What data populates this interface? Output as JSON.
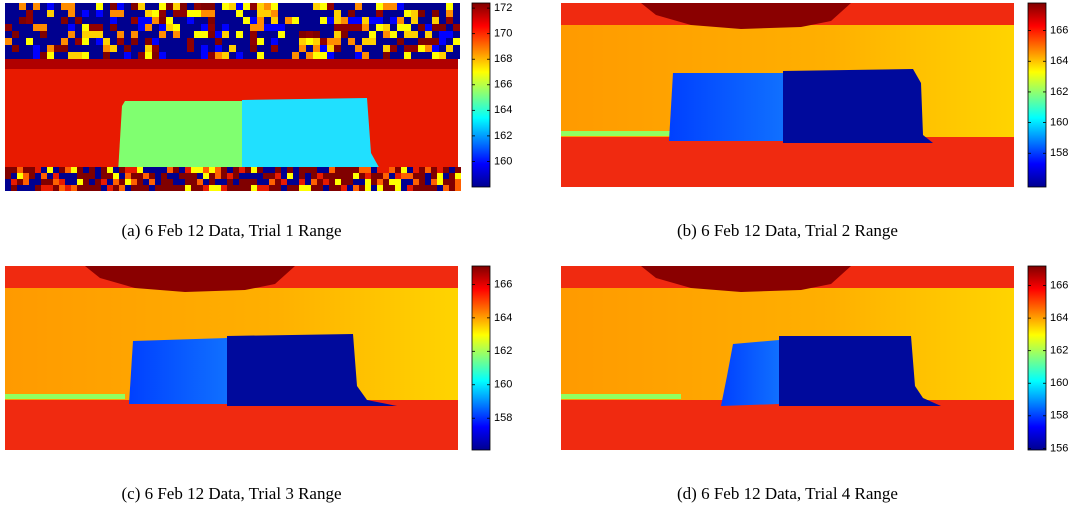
{
  "panels": [
    {
      "caption": "(a) 6 Feb 12 Data, Trial 1 Range",
      "colorbar": {
        "lim": [
          158,
          172.4
        ],
        "ticks": [
          160,
          162,
          164,
          166,
          168,
          170,
          172
        ]
      }
    },
    {
      "caption": "(b) 6 Feb 12 Data, Trial 2 Range",
      "colorbar": {
        "lim": [
          155.8,
          167.8
        ],
        "ticks": [
          158,
          160,
          162,
          164,
          166
        ]
      }
    },
    {
      "caption": "(c) 6 Feb 12 Data, Trial 3 Range",
      "colorbar": {
        "lim": [
          156.1,
          167.1
        ],
        "ticks": [
          158,
          160,
          162,
          164,
          166
        ]
      }
    },
    {
      "caption": "(d) 6 Feb 12 Data, Trial 4 Range",
      "colorbar": {
        "lim": [
          155.9,
          167.2
        ],
        "ticks": [
          156,
          158,
          160,
          162,
          164,
          166
        ]
      }
    }
  ]
}
